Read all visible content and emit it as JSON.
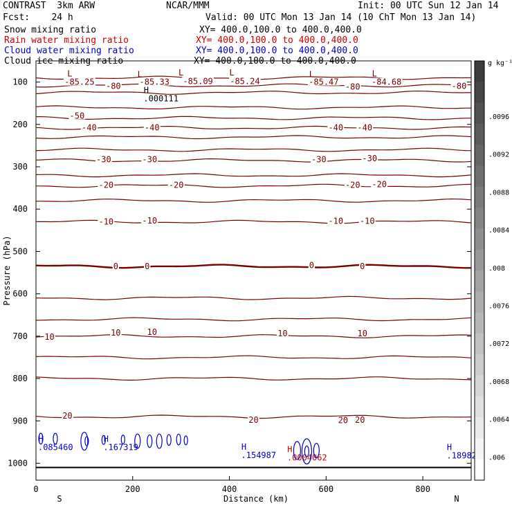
{
  "header": {
    "line1_left": "CONTRAST  3km ARW",
    "line1_mid": "NCAR/MMM",
    "line1_right": "Init: 00 UTC Sun 12 Jan 14",
    "fcst_label": "Fcst:    24 h",
    "valid_label": "Valid: 00 UTC Mon 13 Jan 14 (10 ChT Mon 13 Jan 14)",
    "fields": [
      {
        "name": "Snow mixing ratio",
        "xy": "XY= 400.0,100.0 to 400.0,400.0",
        "color": "#000000"
      },
      {
        "name": "Rain water mixing ratio",
        "xy": "XY= 400.0,100.0 to 400.0,400.0",
        "color": "#d00000"
      },
      {
        "name": "Cloud water mixing ratio",
        "xy": "XY= 400.0,100.0 to 400.0,400.0",
        "color": "#0000cc"
      },
      {
        "name": "Cloud ice mixing ratio",
        "xy": "XY= 400.0,100.0 to 400.0,400.0",
        "color": "#000000"
      }
    ]
  },
  "chart_data": {
    "type": "contour",
    "xlabel": "Distance (km)",
    "ylabel": "Pressure (hPa)",
    "xlim": [
      0,
      900
    ],
    "ylim": [
      1040,
      50
    ],
    "x_ticks": [
      0,
      200,
      400,
      600,
      800
    ],
    "y_ticks": [
      100,
      200,
      300,
      400,
      500,
      600,
      700,
      800,
      900,
      1000
    ],
    "x_end_labels": {
      "left": "S",
      "right": "N"
    },
    "temperature_contours": {
      "color": "#7a0000",
      "levels_pressure": [
        90,
        108,
        125,
        160,
        185,
        208,
        230,
        260,
        285,
        320,
        345,
        380,
        430,
        535,
        610,
        660,
        700,
        750,
        800,
        890
      ],
      "labels": [
        {
          "text": "-85.25",
          "x": 90,
          "p": 100
        },
        {
          "text": "-85.33",
          "x": 245,
          "p": 100
        },
        {
          "text": "-85.09",
          "x": 335,
          "p": 98
        },
        {
          "text": "-85.24",
          "x": 432,
          "p": 98
        },
        {
          "text": "-85.47",
          "x": 595,
          "p": 100
        },
        {
          "text": "-84.68",
          "x": 725,
          "p": 100
        },
        {
          "text": "-80",
          "x": 160,
          "p": 110
        },
        {
          "text": "-80",
          "x": 655,
          "p": 111
        },
        {
          "text": "-80",
          "x": 875,
          "p": 110
        },
        {
          "text": "-50",
          "x": 85,
          "p": 180
        },
        {
          "text": "-40",
          "x": 110,
          "p": 208
        },
        {
          "text": "-40",
          "x": 240,
          "p": 208
        },
        {
          "text": "-40",
          "x": 620,
          "p": 208
        },
        {
          "text": "-40",
          "x": 680,
          "p": 208
        },
        {
          "text": "-30",
          "x": 140,
          "p": 283
        },
        {
          "text": "-30",
          "x": 235,
          "p": 283
        },
        {
          "text": "-30",
          "x": 585,
          "p": 283
        },
        {
          "text": "-30",
          "x": 690,
          "p": 280
        },
        {
          "text": "-20",
          "x": 145,
          "p": 343
        },
        {
          "text": "-20",
          "x": 290,
          "p": 343
        },
        {
          "text": "-20",
          "x": 655,
          "p": 343
        },
        {
          "text": "-20",
          "x": 710,
          "p": 342
        },
        {
          "text": "-10",
          "x": 145,
          "p": 430
        },
        {
          "text": "-10",
          "x": 235,
          "p": 427
        },
        {
          "text": "-10",
          "x": 620,
          "p": 428
        },
        {
          "text": "-10",
          "x": 685,
          "p": 428
        },
        {
          "text": "0",
          "x": 165,
          "p": 535
        },
        {
          "text": "0",
          "x": 230,
          "p": 535
        },
        {
          "text": "0",
          "x": 570,
          "p": 533
        },
        {
          "text": "0",
          "x": 675,
          "p": 535
        },
        {
          "text": "10",
          "x": 165,
          "p": 692
        },
        {
          "text": "10",
          "x": 240,
          "p": 690
        },
        {
          "text": "10",
          "x": 510,
          "p": 694
        },
        {
          "text": "10",
          "x": 675,
          "p": 694
        },
        {
          "text": "10",
          "x": 28,
          "p": 702
        },
        {
          "text": "20",
          "x": 65,
          "p": 888
        },
        {
          "text": "20",
          "x": 450,
          "p": 898
        },
        {
          "text": "20",
          "x": 635,
          "p": 899
        },
        {
          "text": "20",
          "x": 670,
          "p": 898
        }
      ]
    },
    "extrema": [
      {
        "kind": "L",
        "x": 70,
        "p": 87
      },
      {
        "kind": "L",
        "x": 215,
        "p": 88
      },
      {
        "kind": "L",
        "x": 300,
        "p": 84
      },
      {
        "kind": "L",
        "x": 405,
        "p": 84
      },
      {
        "kind": "L",
        "x": 570,
        "p": 88
      },
      {
        "kind": "L",
        "x": 700,
        "p": 87
      },
      {
        "kind": "H",
        "x": 228,
        "p": 126,
        "value": ".000111",
        "color": "#000000"
      },
      {
        "kind": "H",
        "x": 10,
        "p": 949,
        "value": ".085460",
        "color": "#0000cc"
      },
      {
        "kind": "H",
        "x": 145,
        "p": 949,
        "value": ".167319",
        "color": "#0000cc"
      },
      {
        "kind": "H",
        "x": 430,
        "p": 968,
        "value": ".154987",
        "color": "#0000cc"
      },
      {
        "kind": "H",
        "x": 525,
        "p": 974,
        "value": ".0004062",
        "color": "#d00000"
      },
      {
        "kind": "H",
        "x": 855,
        "p": 969,
        "value": ".18982",
        "color": "#0000cc"
      }
    ],
    "colorbar": {
      "units": "g kg⁻¹",
      "tick_labels": [
        ".0096",
        ".0092",
        ".0088",
        ".0084",
        ".008",
        ".0076",
        ".0072",
        ".0068",
        ".0064",
        ".006"
      ]
    }
  }
}
